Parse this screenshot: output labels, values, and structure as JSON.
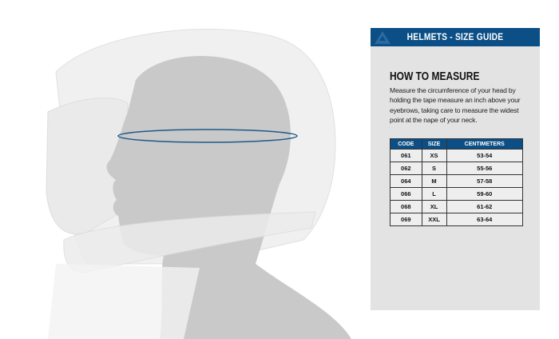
{
  "header": {
    "title": "HELMETS - SIZE GUIDE",
    "logo": "brand-logo"
  },
  "section": {
    "title": "HOW TO MEASURE",
    "description": "Measure the circumference of your head by holding the tape measure an inch above your eyebrows, taking care to measure the widest point at the nape of your neck."
  },
  "table": {
    "headers": [
      "CODE",
      "SIZE",
      "CENTIMETERS"
    ],
    "rows": [
      [
        "061",
        "XS",
        "53-54"
      ],
      [
        "062",
        "S",
        "55-56"
      ],
      [
        "064",
        "M",
        "57-58"
      ],
      [
        "066",
        "L",
        "59-60"
      ],
      [
        "068",
        "XL",
        "61-62"
      ],
      [
        "069",
        "XXL",
        "63-64"
      ]
    ]
  },
  "colors": {
    "accent": "#0b4f86",
    "panel": "#e3e3e3",
    "tape": "#1f5a8a"
  }
}
